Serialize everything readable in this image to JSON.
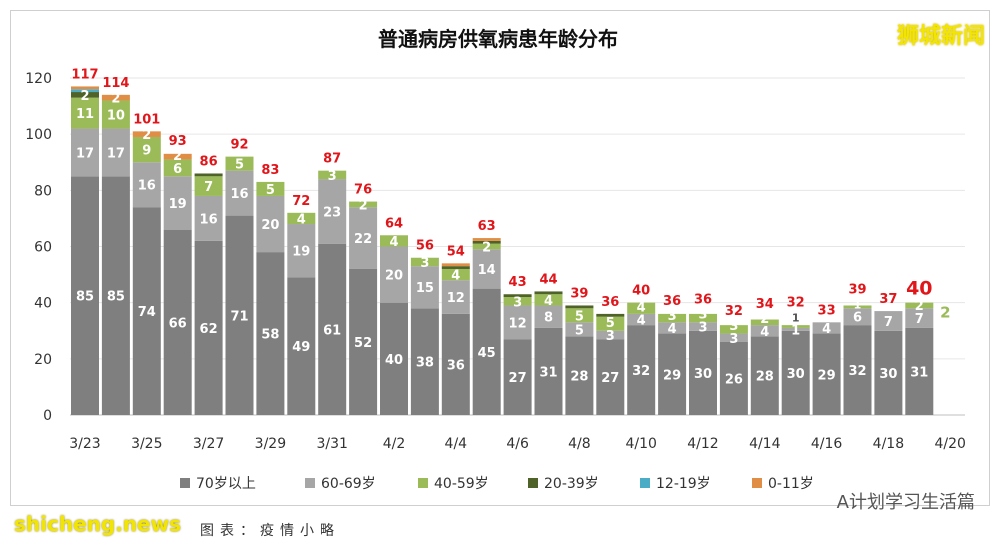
{
  "watermarks": {
    "top_right": "狮城新闻",
    "bottom_right": "A计划学习生活篇",
    "bottom_left": "shicheng.news",
    "footer": "图表：疫情小略"
  },
  "chart_data": {
    "type": "bar",
    "stacked": true,
    "title": "普通病房供氧病患年龄分布",
    "xlabel": "",
    "ylabel": "",
    "ylim": [
      0,
      120
    ],
    "yticks": [
      0,
      20,
      40,
      60,
      80,
      100,
      120
    ],
    "grid": true,
    "legend_position": "bottom",
    "categories": [
      "3/23",
      "3/24",
      "3/25",
      "3/26",
      "3/27",
      "3/28",
      "3/29",
      "3/30",
      "3/31",
      "4/1",
      "4/2",
      "4/3",
      "4/4",
      "4/5",
      "4/6",
      "4/7",
      "4/8",
      "4/9",
      "4/10",
      "4/11",
      "4/12",
      "4/13",
      "4/14",
      "4/15",
      "4/16",
      "4/17",
      "4/18",
      "4/19"
    ],
    "xtick_labels": [
      "3/23",
      "3/25",
      "3/27",
      "3/29",
      "3/31",
      "4/2",
      "4/4",
      "4/6",
      "4/8",
      "4/10",
      "4/12",
      "4/14",
      "4/16",
      "4/18",
      "4/20"
    ],
    "series": [
      {
        "name": "70岁以上",
        "color": "#7f7f7f",
        "values": [
          85,
          85,
          74,
          66,
          62,
          71,
          58,
          49,
          61,
          52,
          40,
          38,
          36,
          45,
          27,
          31,
          28,
          27,
          32,
          29,
          30,
          26,
          28,
          30,
          29,
          32,
          30,
          31
        ]
      },
      {
        "name": "60-69岁",
        "color": "#a6a6a6",
        "values": [
          17,
          17,
          16,
          19,
          16,
          16,
          20,
          19,
          23,
          22,
          20,
          15,
          12,
          14,
          12,
          8,
          5,
          3,
          4,
          4,
          3,
          3,
          4,
          1,
          4,
          6,
          7,
          7
        ]
      },
      {
        "name": "40-59岁",
        "color": "#9bbb59",
        "values": [
          11,
          10,
          9,
          6,
          7,
          5,
          5,
          4,
          3,
          2,
          4,
          3,
          4,
          2,
          3,
          4,
          5,
          5,
          4,
          3,
          3,
          3,
          2,
          1,
          0,
          1,
          0,
          2
        ]
      },
      {
        "name": "20-39岁",
        "color": "#4f6228",
        "values": [
          2,
          0,
          0,
          0,
          1,
          0,
          0,
          0,
          0,
          0,
          0,
          0,
          1,
          1,
          1,
          1,
          1,
          1,
          0,
          0,
          0,
          0,
          0,
          0,
          0,
          0,
          0,
          0
        ]
      },
      {
        "name": "12-19岁",
        "color": "#4bacc6",
        "values": [
          1,
          0,
          0,
          0,
          0,
          0,
          0,
          0,
          0,
          0,
          0,
          0,
          0,
          0,
          0,
          0,
          0,
          0,
          0,
          0,
          0,
          0,
          0,
          0,
          0,
          0,
          0,
          0
        ]
      },
      {
        "name": "0-11岁",
        "color": "#e08e45",
        "values": [
          1,
          2,
          2,
          2,
          0,
          0,
          0,
          0,
          0,
          0,
          0,
          0,
          1,
          1,
          0,
          0,
          0,
          0,
          0,
          0,
          0,
          0,
          0,
          0,
          0,
          0,
          0,
          0
        ]
      }
    ],
    "totals": [
      117,
      114,
      101,
      93,
      86,
      92,
      83,
      72,
      87,
      76,
      64,
      56,
      54,
      63,
      43,
      44,
      39,
      36,
      40,
      36,
      36,
      32,
      34,
      32,
      33,
      39,
      37,
      40
    ],
    "total_label_color": "#e0161b"
  }
}
